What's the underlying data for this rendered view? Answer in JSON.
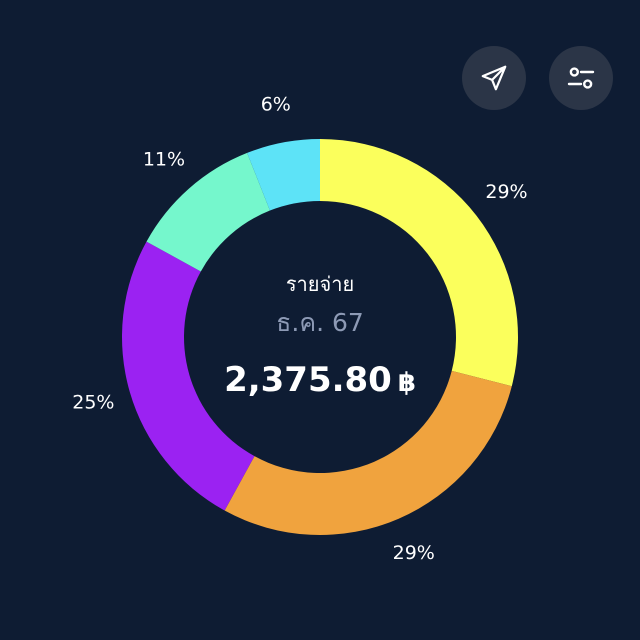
{
  "toolbar": {
    "send_icon": "send-icon",
    "filter_icon": "filter-toggle-icon"
  },
  "center": {
    "title": "รายจ่าย",
    "period": "ธ.ค. 67",
    "amount": "2,375.80",
    "currency": "฿"
  },
  "colors": {
    "background": "#0e1c33",
    "button": "#2b3547"
  },
  "chart_data": {
    "type": "pie",
    "donut": true,
    "values": [
      29,
      29,
      25,
      11,
      6
    ],
    "labels": [
      "29%",
      "29%",
      "25%",
      "11%",
      "6%"
    ],
    "colors": [
      "#fbff5c",
      "#f0a33e",
      "#9b22f2",
      "#75f7cc",
      "#5de3f7"
    ]
  }
}
